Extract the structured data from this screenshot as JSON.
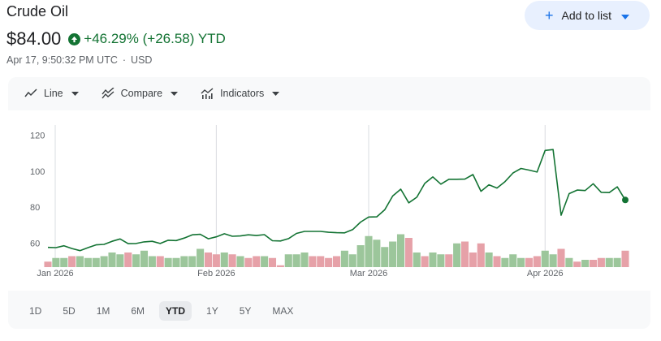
{
  "header": {
    "title": "Crude Oil",
    "price": "$84.00",
    "change": "+46.29% (+26.58) YTD",
    "timestamp": "Apr 17, 9:50:32 PM UTC",
    "currency": "USD",
    "add_to_list_label": "Add to list",
    "change_color": "#137333"
  },
  "toolbar": {
    "line_label": "Line",
    "compare_label": "Compare",
    "indicators_label": "Indicators"
  },
  "ranges": [
    "1D",
    "5D",
    "1M",
    "6M",
    "YTD",
    "1Y",
    "5Y",
    "MAX"
  ],
  "active_range": "YTD",
  "chart_data": {
    "type": "line",
    "x_tick_labels": [
      "Jan 2026",
      "Feb 2026",
      "Mar 2026",
      "Apr 2026"
    ],
    "y_tick_labels": [
      "60",
      "80",
      "100",
      "120"
    ],
    "ylim": [
      48,
      127
    ],
    "line_color": "#137333",
    "series": [
      {
        "values": [
          57.6,
          57.5,
          58.5,
          57,
          55.8,
          57.5,
          59,
          59.3,
          61,
          62.3,
          59.7,
          59.8,
          60.7,
          61,
          59.8,
          61.6,
          61.4,
          62.8,
          64.6,
          64.9,
          62.4,
          63.5,
          65.2,
          63.8,
          64,
          64.6,
          64.2,
          64.7,
          61.3,
          61.2,
          62.5,
          65.4,
          66.5,
          66.5,
          66.5,
          66,
          65.8,
          65.7,
          67.5,
          71.7,
          74.5,
          74.6,
          78.5,
          86.2,
          90,
          82.4,
          85.5,
          93.2,
          96.8,
          92.8,
          95.5,
          95.5,
          95.6,
          98.1,
          88.8,
          92.4,
          90.6,
          94.2,
          99,
          101.5,
          100.6,
          99.5,
          111.5,
          112,
          75.5,
          87.5,
          89.5,
          89.2,
          93,
          88.2,
          88.1,
          91.3,
          84
        ]
      }
    ],
    "volume": {
      "up_color": "#9cc69b",
      "down_color": "#e6a1a8",
      "values": [
        3,
        5,
        5,
        6,
        6,
        5,
        5,
        6,
        8,
        7,
        8,
        7,
        9,
        6,
        6,
        5,
        5,
        6,
        6,
        10,
        8,
        7,
        8,
        7,
        6,
        5,
        6,
        6,
        5,
        1,
        7,
        7,
        8,
        6,
        6,
        5,
        6,
        9,
        7,
        12,
        17,
        15,
        11,
        14,
        18,
        16,
        8,
        6,
        8,
        7,
        7,
        13,
        14,
        8,
        13,
        8,
        6,
        5,
        7,
        5,
        5,
        6,
        9,
        7,
        10,
        5,
        3,
        4,
        4,
        5,
        5,
        5,
        9
      ],
      "up": [
        0,
        1,
        1,
        0,
        1,
        1,
        1,
        1,
        1,
        1,
        0,
        1,
        1,
        1,
        0,
        1,
        1,
        1,
        1,
        1,
        0,
        0,
        1,
        0,
        1,
        0,
        0,
        1,
        0,
        0,
        1,
        1,
        1,
        0,
        0,
        0,
        0,
        1,
        1,
        1,
        1,
        1,
        1,
        1,
        1,
        0,
        1,
        0,
        1,
        1,
        0,
        1,
        0,
        0,
        0,
        1,
        0,
        1,
        1,
        1,
        0,
        0,
        1,
        1,
        0,
        1,
        0,
        1,
        0,
        0,
        1,
        1,
        0
      ]
    },
    "grid": "vertical month separators",
    "endpoint_marker": true
  }
}
